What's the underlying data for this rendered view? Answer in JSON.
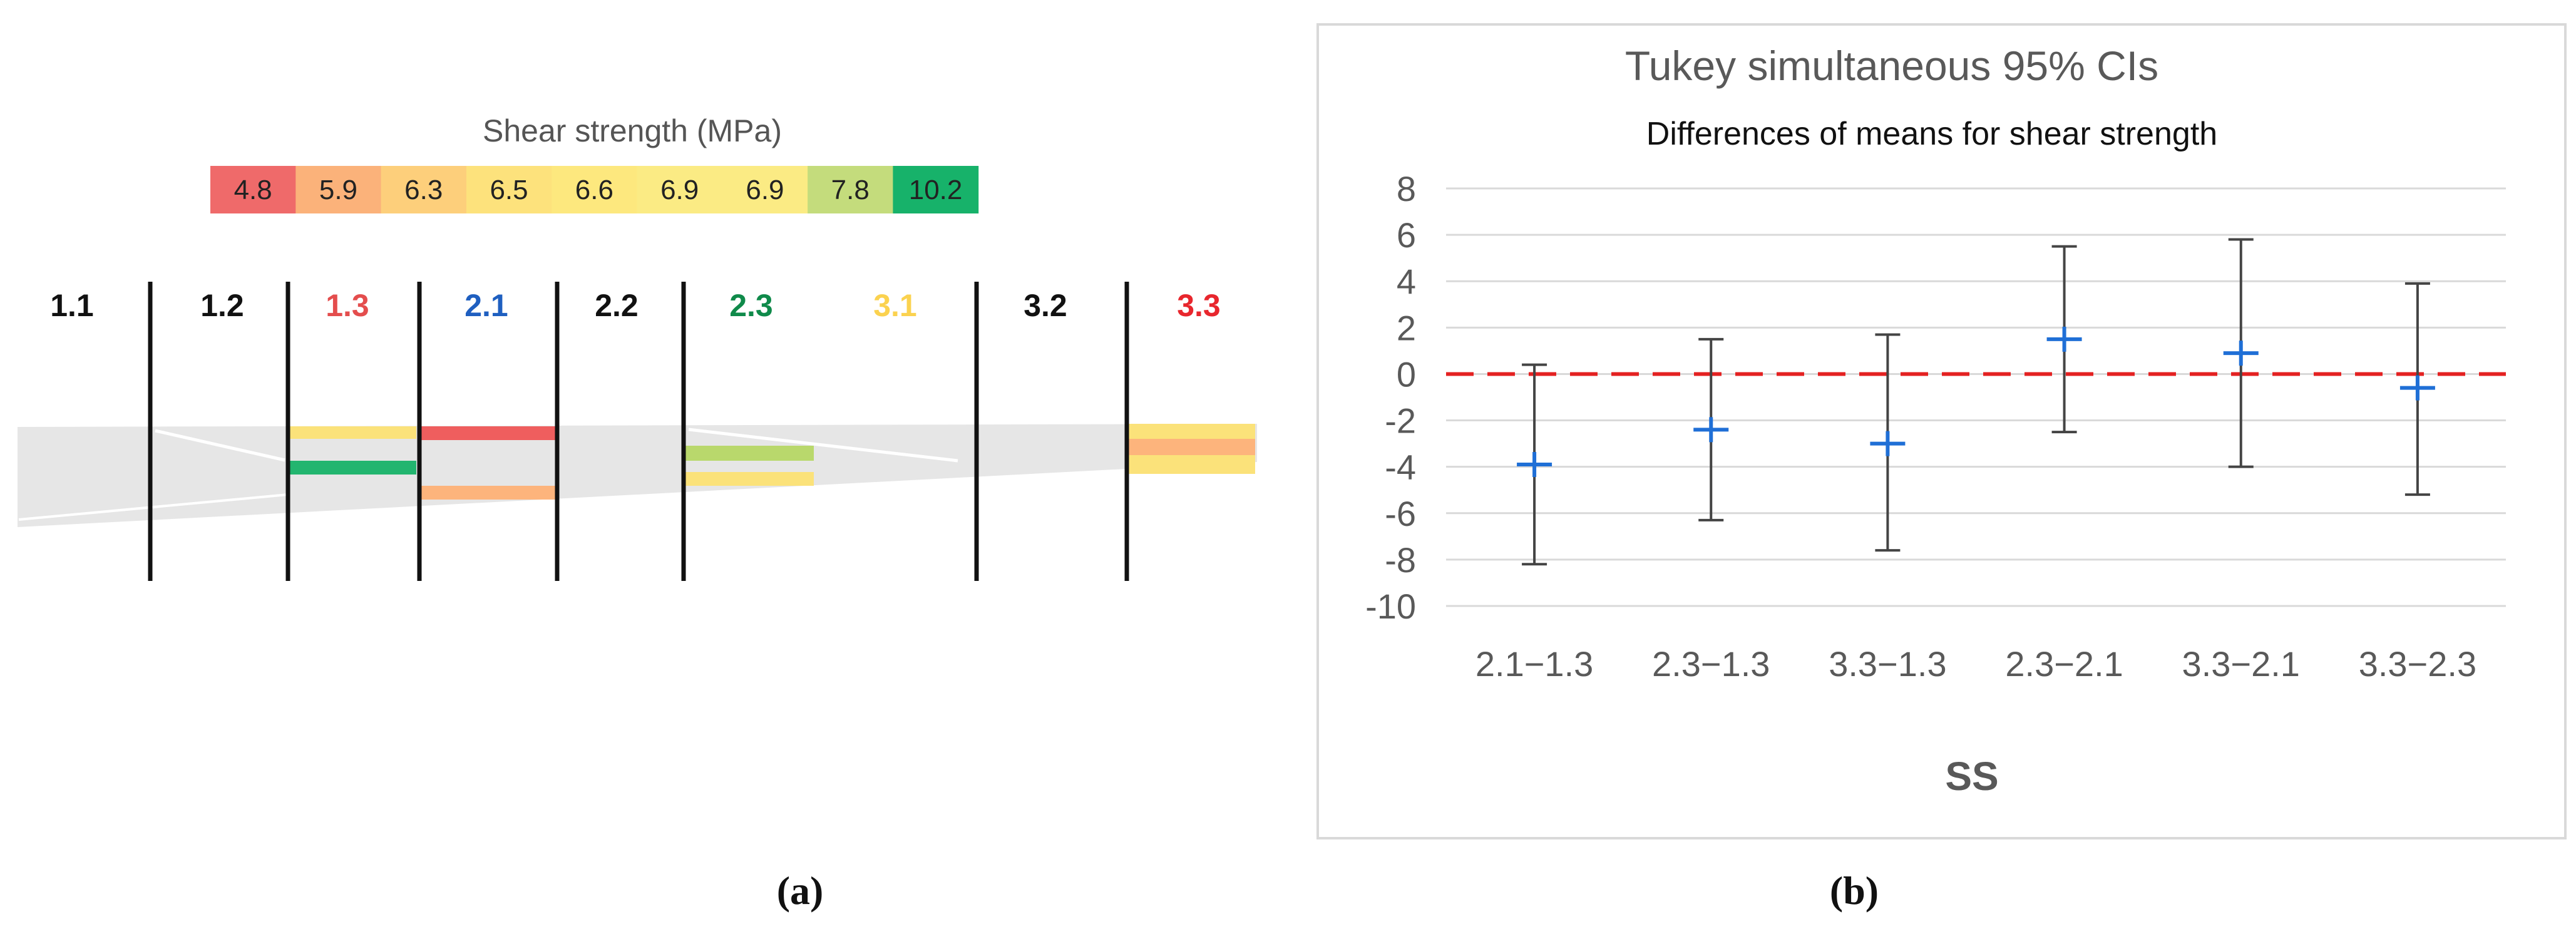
{
  "panel_a": {
    "caption": "(a)",
    "legend_title": "Shear strength (MPa)",
    "legend_values": [
      "4.8",
      "5.9",
      "6.3",
      "6.5",
      "6.6",
      "6.9",
      "6.9",
      "7.8",
      "10.2"
    ],
    "legend_colors": [
      "#ef6a6a",
      "#fbb27a",
      "#fdcf7b",
      "#fde27c",
      "#fde87e",
      "#fbeb84",
      "#fbeb84",
      "#c4dc7c",
      "#17b26a"
    ],
    "section_labels": [
      "1.1",
      "1.2",
      "1.3",
      "2.1",
      "2.2",
      "2.3",
      "3.1",
      "3.2",
      "3.3"
    ],
    "section_label_colors": [
      "#111111",
      "#111111",
      "#e44d4d",
      "#1f5fc0",
      "#111111",
      "#0f8a4a",
      "#fbd24f",
      "#111111",
      "#e8262d"
    ],
    "bar_colors": {
      "red": "#ef5e5e",
      "orange": "#fdb47c",
      "yellow": "#fbe27a",
      "green": "#22b56f",
      "lightgreen": "#b9d86c",
      "band": "#e6e6e6"
    }
  },
  "panel_b": {
    "caption": "(b)",
    "chart_data": {
      "type": "interval",
      "title": "Tukey simultaneous 95% CIs",
      "subtitle": "Differences of means for shear strength",
      "xlabel": "SS",
      "ylabel": "",
      "categories": [
        "2.1−1.3",
        "2.3−1.3",
        "3.3−1.3",
        "2.3−2.1",
        "3.3−2.1",
        "3.3−2.3"
      ],
      "estimate": [
        -3.9,
        -2.4,
        -3.0,
        1.5,
        0.9,
        -0.6
      ],
      "lower": [
        -8.2,
        -6.3,
        -7.6,
        -2.5,
        -4.0,
        -5.2
      ],
      "upper": [
        0.4,
        1.5,
        1.7,
        5.5,
        5.8,
        3.9
      ],
      "ylim": [
        -10,
        8
      ],
      "yticks": [
        8,
        6,
        4,
        2,
        0,
        -2,
        -4,
        -6,
        -8,
        -10
      ],
      "reference_line": 0,
      "grid": true,
      "colors": {
        "estimate": "#1f6fd6",
        "interval": "#444444",
        "reference": "#e42121",
        "grid": "#d9d9d9",
        "text": "#595959"
      }
    }
  }
}
